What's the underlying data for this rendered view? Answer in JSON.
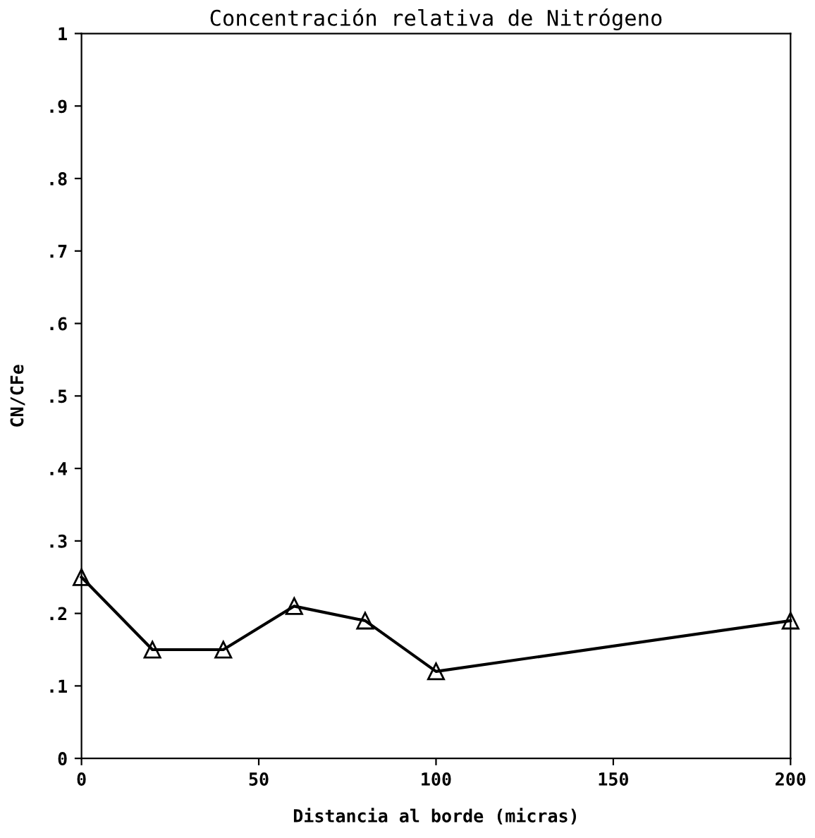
{
  "chart_data": {
    "type": "line",
    "title": "Concentración relativa de Nitrógeno",
    "xlabel": "Distancia al borde (micras)",
    "ylabel": "CN/CFe",
    "x": [
      0,
      20,
      40,
      60,
      80,
      100,
      200
    ],
    "series": [
      {
        "color": "#000000",
        "values": [
          0.25,
          0.15,
          0.15,
          0.21,
          0.19,
          0.12,
          0.19
        ]
      }
    ],
    "xlim": [
      0,
      200
    ],
    "xticks": [
      0,
      50,
      100,
      150,
      200
    ],
    "ylim": [
      0,
      1
    ],
    "yticks": [
      {
        "value": 0,
        "label": "0"
      },
      {
        "value": 0.1,
        "label": ".1"
      },
      {
        "value": 0.2,
        "label": ".2"
      },
      {
        "value": 0.3,
        "label": ".3"
      },
      {
        "value": 0.4,
        "label": ".4"
      },
      {
        "value": 0.5,
        "label": ".5"
      },
      {
        "value": 0.6,
        "label": ".6"
      },
      {
        "value": 0.7,
        "label": ".7"
      },
      {
        "value": 0.8,
        "label": ".8"
      },
      {
        "value": 0.9,
        "label": ".9"
      },
      {
        "value": 1,
        "label": "1"
      }
    ],
    "marker": "triangle",
    "grid": false,
    "legend": false
  }
}
